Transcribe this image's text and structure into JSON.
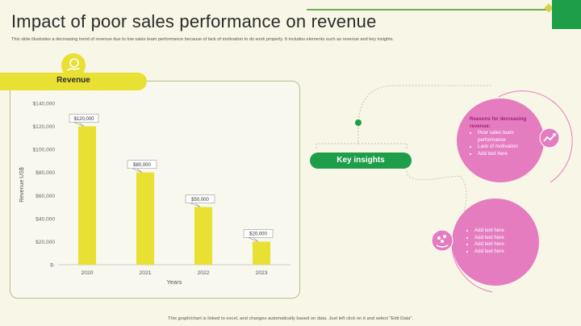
{
  "header": {
    "title": "Impact of poor sales performance on revenue",
    "subtitle": "This slide illustrates a decreasing trend of revenue due to low sales team performance because of lack of motivation to do work properly. It includes elements such as revenue and key insights."
  },
  "revenue_panel": {
    "label": "Revenue"
  },
  "chart_data": {
    "type": "bar",
    "categories": [
      "2020",
      "2021",
      "2022",
      "2023"
    ],
    "values": [
      120000,
      80000,
      50000,
      20000
    ],
    "data_labels": [
      "$120,000",
      "$80,000",
      "$50,000",
      "$20,000"
    ],
    "y_tick_labels": [
      "$-",
      "$20,000",
      "$40,000",
      "$60,000",
      "$80,000",
      "$100,000",
      "$120,000",
      "$140,000"
    ],
    "ylim": [
      0,
      140000
    ],
    "xlabel": "Years",
    "ylabel": "Revenue US$",
    "bar_color": "#e8e033",
    "grid": false
  },
  "key_insights": {
    "label": "Key insights"
  },
  "insight_circle_1": {
    "heading": "Reasons for decreasing revenue:",
    "bullets": [
      "Poor sales team performance",
      "Lack of motivation",
      "Add text here"
    ]
  },
  "insight_circle_2": {
    "bullets": [
      "Add text here",
      "Add text here",
      "Add text here",
      "Add text here"
    ]
  },
  "footer": {
    "note": "This graph/chart is linked to excel, and changes automatically based on data. Just left click on it and select \"Edit Data\"."
  },
  "colors": {
    "accent_yellow": "#e8e033",
    "accent_green": "#1f9e4a",
    "accent_pink": "#e57cc0",
    "background": "#f8f6e6"
  }
}
